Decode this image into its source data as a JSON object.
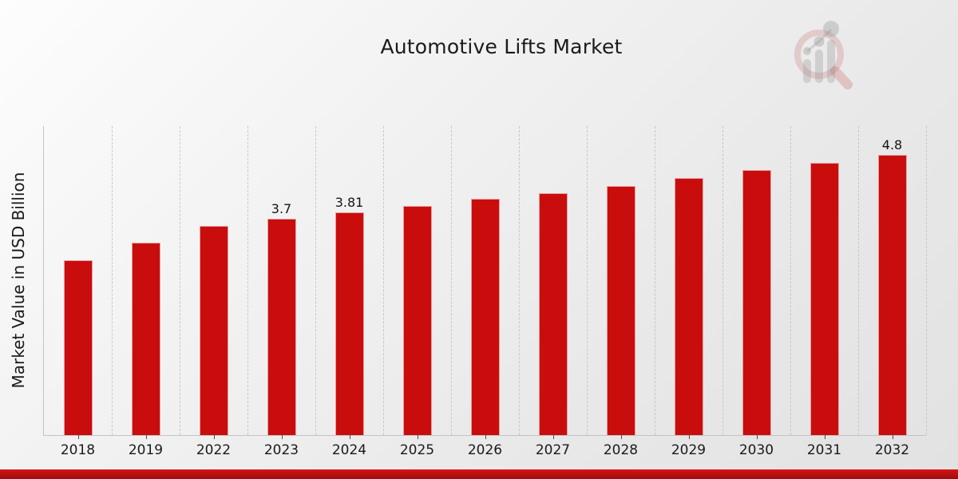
{
  "chart_data": {
    "type": "bar",
    "title": "Automotive Lifts Market",
    "xlabel": "",
    "ylabel": "Market Value in USD Billion",
    "categories": [
      "2018",
      "2019",
      "2022",
      "2023",
      "2024",
      "2025",
      "2026",
      "2027",
      "2028",
      "2029",
      "2030",
      "2031",
      "2032"
    ],
    "values": [
      2.99,
      3.29,
      3.58,
      3.7,
      3.81,
      3.92,
      4.04,
      4.14,
      4.26,
      4.4,
      4.54,
      4.66,
      4.8
    ],
    "point_labels": [
      "",
      "",
      "",
      "3.7",
      "3.81",
      "",
      "",
      "",
      "",
      "",
      "",
      "",
      "4.8"
    ],
    "ylim": [
      0,
      5.29
    ],
    "grid": "vertical dashed lines at category boundaries",
    "legend": "none",
    "y_tick_labels": "none"
  },
  "icons": {
    "watermark": "magnifier-bar-chart-logo"
  },
  "colors": {
    "bar": "#c90d0d",
    "bottom_band_top": "#dd1616",
    "bottom_band_bottom": "#9b0e0e",
    "grid": "#c7c7c7",
    "axis": "#c3c3c3",
    "text": "#1a1a1a",
    "background_top_left": "#fdfdfd",
    "background_bottom_right": "#e2e2e2"
  }
}
